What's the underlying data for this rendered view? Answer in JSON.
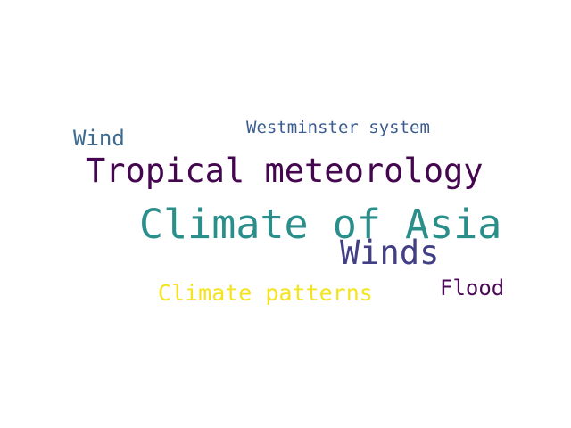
{
  "word_cloud": {
    "words": [
      {
        "text": "Climate of Asia",
        "color": "#2a8e8a",
        "rank": 1
      },
      {
        "text": "Tropical meteorology",
        "color": "#44064f",
        "rank": 2
      },
      {
        "text": "Winds",
        "color": "#423f85",
        "rank": 3
      },
      {
        "text": "Climate patterns",
        "color": "#f4e41f",
        "rank": 4
      },
      {
        "text": "Wind",
        "color": "#3d6a90",
        "rank": 5
      },
      {
        "text": "Flood",
        "color": "#4b0a55",
        "rank": 6
      },
      {
        "text": "Westminster system",
        "color": "#3b5c8e",
        "rank": 7
      }
    ]
  }
}
